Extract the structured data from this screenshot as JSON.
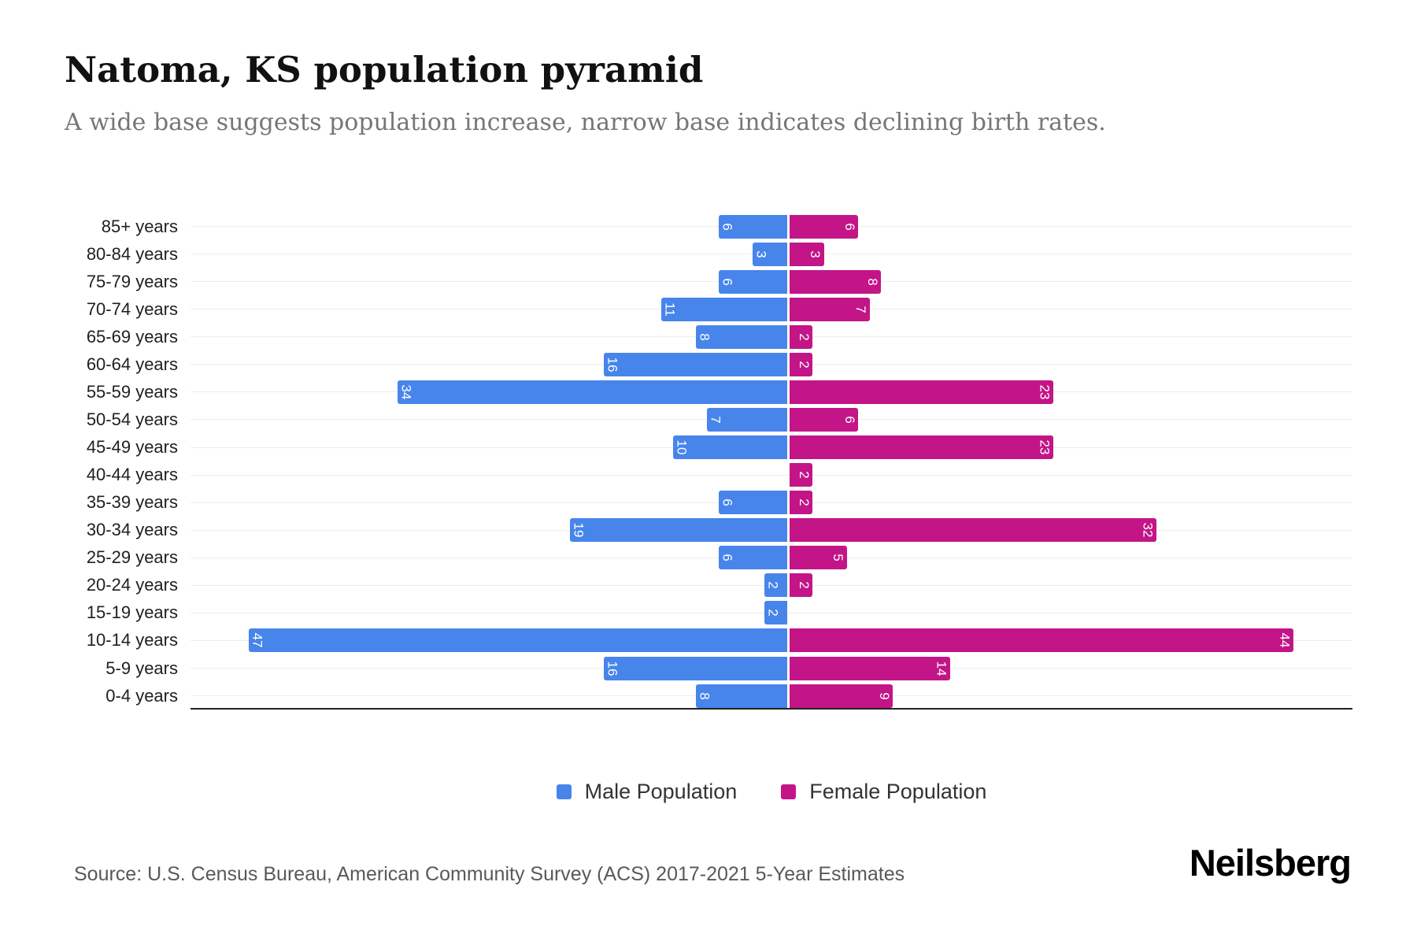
{
  "header": {
    "title": "Natoma, KS population pyramid",
    "subtitle": "A wide base suggests population increase, narrow base indicates declining birth rates."
  },
  "chart_data": {
    "type": "bar",
    "variant": "population-pyramid-horizontal",
    "categories": [
      "85+ years",
      "80-84 years",
      "75-79 years",
      "70-74 years",
      "65-69 years",
      "60-64 years",
      "55-59 years",
      "50-54 years",
      "45-49 years",
      "40-44 years",
      "35-39 years",
      "30-34 years",
      "25-29 years",
      "20-24 years",
      "15-19 years",
      "10-14 years",
      "5-9 years",
      "0-4 years"
    ],
    "series": [
      {
        "name": "Male Population",
        "side": "left",
        "color": "#4785EB",
        "values": [
          6,
          3,
          6,
          11,
          8,
          16,
          34,
          7,
          10,
          0,
          6,
          19,
          6,
          2,
          2,
          47,
          16,
          8
        ]
      },
      {
        "name": "Female Population",
        "side": "right",
        "color": "#C31587",
        "values": [
          6,
          3,
          8,
          7,
          2,
          2,
          23,
          6,
          23,
          2,
          2,
          32,
          5,
          2,
          0,
          44,
          14,
          9
        ]
      }
    ],
    "value_labels": "white, rotated 90deg, placed at outer end of each bar, hidden when value is 0",
    "xlim": [
      -52,
      52
    ],
    "x_axis_ticks": "none",
    "grid": "light horizontal line through each category row",
    "gridline_color": "#ededed",
    "axis_line_color": "#212121",
    "legend_position": "bottom-center"
  },
  "legend": {
    "items": [
      {
        "label": "Male Population",
        "color": "#4785EB"
      },
      {
        "label": "Female Population",
        "color": "#C31587"
      }
    ]
  },
  "footer": {
    "source": "Source: U.S. Census Bureau, American Community Survey (ACS) 2017-2021 5-Year Estimates",
    "brand": "Neilsberg"
  }
}
